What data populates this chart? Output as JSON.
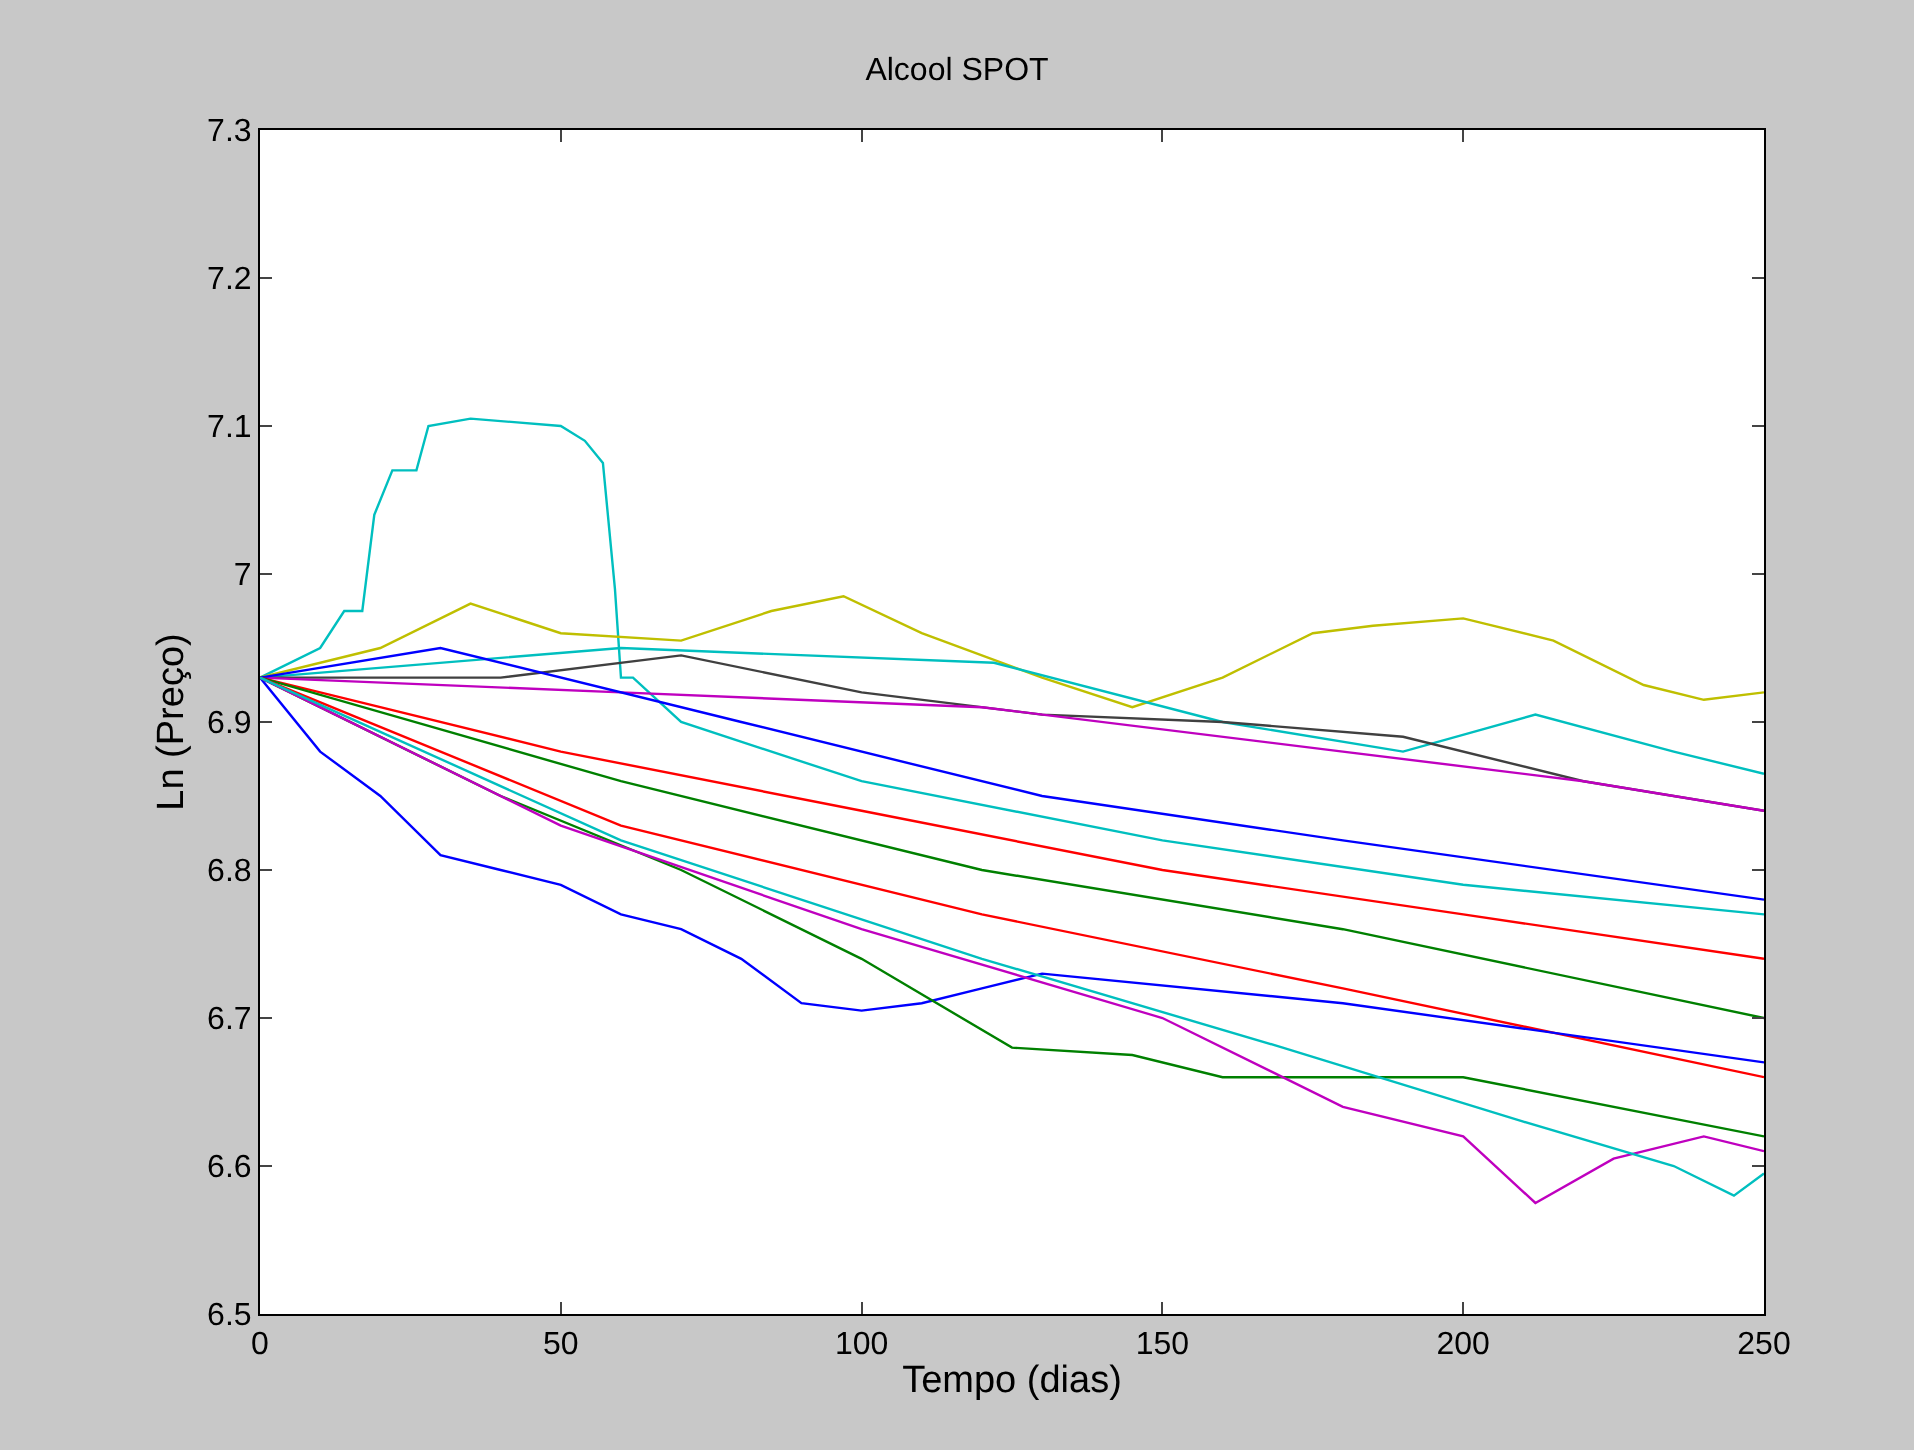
{
  "chart_data": {
    "type": "line",
    "title": "Alcool SPOT",
    "xlabel": "Tempo (dias)",
    "ylabel": "Ln (Preço)",
    "xlim": [
      0,
      250
    ],
    "xticks": [
      0,
      50,
      100,
      150,
      200,
      250
    ],
    "ylim": [
      6.5,
      7.3
    ],
    "yticks": [
      6.5,
      6.6,
      6.7,
      6.8,
      6.9,
      7,
      7.1,
      7.2,
      7.3
    ],
    "line_style": "solid",
    "marker": "none",
    "series": [
      {
        "color": "#00bfbf",
        "x": [
          0,
          10,
          14,
          17,
          19,
          22,
          26,
          28,
          35,
          50,
          54,
          57,
          59,
          60,
          62,
          70,
          100,
          150,
          200,
          250
        ],
        "values": [
          6.93,
          6.95,
          6.975,
          6.975,
          7.04,
          7.07,
          7.07,
          7.1,
          7.105,
          7.1,
          7.09,
          7.075,
          6.99,
          6.93,
          6.93,
          6.9,
          6.86,
          6.82,
          6.79,
          6.77
        ]
      },
      {
        "color": "#bfbf00",
        "x": [
          0,
          20,
          35,
          50,
          70,
          85,
          97,
          110,
          130,
          145,
          160,
          175,
          185,
          200,
          215,
          230,
          240,
          250
        ],
        "values": [
          6.93,
          6.95,
          6.98,
          6.96,
          6.955,
          6.975,
          6.985,
          6.96,
          6.93,
          6.91,
          6.93,
          6.96,
          6.965,
          6.97,
          6.955,
          6.925,
          6.915,
          6.92
        ]
      },
      {
        "color": "#00bfbf",
        "x": [
          0,
          60,
          122,
          160,
          190,
          212,
          235,
          250
        ],
        "values": [
          6.93,
          6.95,
          6.94,
          6.9,
          6.88,
          6.905,
          6.88,
          6.865
        ]
      },
      {
        "color": "#404040",
        "x": [
          0,
          40,
          70,
          100,
          130,
          160,
          190,
          220,
          250
        ],
        "values": [
          6.93,
          6.93,
          6.945,
          6.92,
          6.905,
          6.9,
          6.89,
          6.86,
          6.84
        ]
      },
      {
        "color": "#bf00bf",
        "x": [
          0,
          60,
          120,
          180,
          220,
          250
        ],
        "values": [
          6.93,
          6.92,
          6.91,
          6.88,
          6.86,
          6.84
        ]
      },
      {
        "color": "#0000ff",
        "x": [
          0,
          30,
          80,
          130,
          180,
          250
        ],
        "values": [
          6.93,
          6.95,
          6.9,
          6.85,
          6.82,
          6.78
        ]
      },
      {
        "color": "#ff0000",
        "x": [
          0,
          50,
          100,
          150,
          200,
          250
        ],
        "values": [
          6.93,
          6.88,
          6.84,
          6.8,
          6.77,
          6.74
        ]
      },
      {
        "color": "#008000",
        "x": [
          0,
          60,
          120,
          180,
          250
        ],
        "values": [
          6.93,
          6.86,
          6.8,
          6.76,
          6.7
        ]
      },
      {
        "color": "#ff0000",
        "x": [
          0,
          60,
          120,
          180,
          250
        ],
        "values": [
          6.93,
          6.83,
          6.77,
          6.72,
          6.66
        ]
      },
      {
        "color": "#0000ff",
        "x": [
          0,
          10,
          20,
          30,
          40,
          50,
          60,
          70,
          80,
          90,
          100,
          110,
          120,
          130,
          180,
          250
        ],
        "values": [
          6.93,
          6.88,
          6.85,
          6.81,
          6.8,
          6.79,
          6.77,
          6.76,
          6.74,
          6.71,
          6.705,
          6.71,
          6.72,
          6.73,
          6.71,
          6.67
        ]
      },
      {
        "color": "#008000",
        "x": [
          0,
          40,
          70,
          100,
          125,
          145,
          160,
          200,
          250
        ],
        "values": [
          6.93,
          6.85,
          6.8,
          6.74,
          6.68,
          6.675,
          6.66,
          6.66,
          6.62
        ]
      },
      {
        "color": "#bf00bf",
        "x": [
          0,
          50,
          100,
          150,
          180,
          200,
          212,
          225,
          240,
          250
        ],
        "values": [
          6.93,
          6.83,
          6.76,
          6.7,
          6.64,
          6.62,
          6.575,
          6.605,
          6.62,
          6.61
        ]
      },
      {
        "color": "#00bfbf",
        "x": [
          0,
          60,
          120,
          170,
          210,
          235,
          245,
          250
        ],
        "values": [
          6.93,
          6.82,
          6.74,
          6.68,
          6.63,
          6.6,
          6.58,
          6.595
        ]
      }
    ]
  }
}
